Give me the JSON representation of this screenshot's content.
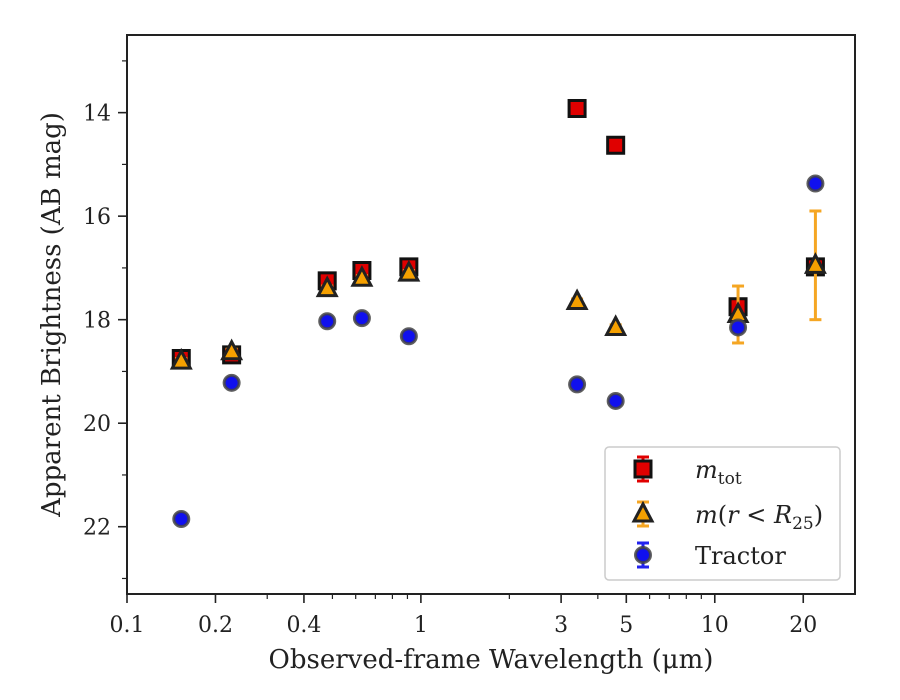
{
  "chart_data": {
    "type": "scatter",
    "xlabel": "Observed-frame Wavelength (μm)",
    "ylabel": "Apparent Brightness (AB mag)",
    "xscale": "log",
    "xlim": [
      0.1,
      30
    ],
    "ylim": [
      23.3,
      12.5
    ],
    "y_inverted": true,
    "x_ticks": [
      {
        "value": 0.1,
        "label": "0.1"
      },
      {
        "value": 0.2,
        "label": "0.2"
      },
      {
        "value": 0.4,
        "label": "0.4"
      },
      {
        "value": 1,
        "label": "1"
      },
      {
        "value": 3,
        "label": "3"
      },
      {
        "value": 5,
        "label": "5"
      },
      {
        "value": 10,
        "label": "10"
      },
      {
        "value": 20,
        "label": "20"
      }
    ],
    "y_ticks": [
      {
        "value": 14,
        "label": "14"
      },
      {
        "value": 16,
        "label": "16"
      },
      {
        "value": 18,
        "label": "18"
      },
      {
        "value": 20,
        "label": "20"
      },
      {
        "value": 22,
        "label": "22"
      }
    ],
    "grid": false,
    "legend_position": "lower-right",
    "series": [
      {
        "name": "m_tot",
        "legend_label": "m_tot",
        "marker": "square",
        "face_color": "#e00000",
        "edge_color": "#111111",
        "error_color": "#e00000",
        "points": [
          {
            "x": 0.153,
            "y": 18.75,
            "err": 0.05
          },
          {
            "x": 0.227,
            "y": 18.68,
            "err": 0.05
          },
          {
            "x": 0.48,
            "y": 17.25,
            "err": 0.05
          },
          {
            "x": 0.63,
            "y": 17.05,
            "err": 0.05
          },
          {
            "x": 0.91,
            "y": 16.98,
            "err": 0.05
          },
          {
            "x": 3.4,
            "y": 13.92,
            "err": 0.03
          },
          {
            "x": 4.6,
            "y": 14.63,
            "err": 0.03
          },
          {
            "x": 12.0,
            "y": 17.75,
            "err": 0.05
          },
          {
            "x": 22.0,
            "y": 16.98,
            "err": 0.05
          }
        ]
      },
      {
        "name": "m(r<R25)",
        "legend_label": "m(r < R25)",
        "marker": "triangle",
        "face_color": "#f5a000",
        "edge_color": "#222222",
        "error_color": "#f5a623",
        "points": [
          {
            "x": 0.153,
            "y": 18.8,
            "err": 0.05
          },
          {
            "x": 0.227,
            "y": 18.62,
            "err": 0.05
          },
          {
            "x": 0.48,
            "y": 17.4,
            "err": 0.05
          },
          {
            "x": 0.63,
            "y": 17.2,
            "err": 0.05
          },
          {
            "x": 0.91,
            "y": 17.1,
            "err": 0.05
          },
          {
            "x": 3.4,
            "y": 17.65,
            "err": 0.05
          },
          {
            "x": 4.6,
            "y": 18.15,
            "err": 0.05
          },
          {
            "x": 12.0,
            "y": 17.9,
            "err": 0.55
          },
          {
            "x": 22.0,
            "y": 16.95,
            "err": 1.05
          }
        ]
      },
      {
        "name": "Tractor",
        "legend_label": "Tractor",
        "marker": "circle",
        "face_color": "#1010ee",
        "edge_color": "#444444",
        "error_color": "#2222ee",
        "points": [
          {
            "x": 0.153,
            "y": 21.85,
            "err": 0.05
          },
          {
            "x": 0.227,
            "y": 19.22,
            "err": 0.05
          },
          {
            "x": 0.48,
            "y": 18.03,
            "err": 0.05
          },
          {
            "x": 0.63,
            "y": 17.97,
            "err": 0.05
          },
          {
            "x": 0.91,
            "y": 18.32,
            "err": 0.05
          },
          {
            "x": 3.4,
            "y": 19.25,
            "err": 0.05
          },
          {
            "x": 4.6,
            "y": 19.57,
            "err": 0.05
          },
          {
            "x": 12.0,
            "y": 18.15,
            "err": 0.05
          },
          {
            "x": 22.0,
            "y": 15.37,
            "err": 0.05
          }
        ]
      }
    ]
  }
}
